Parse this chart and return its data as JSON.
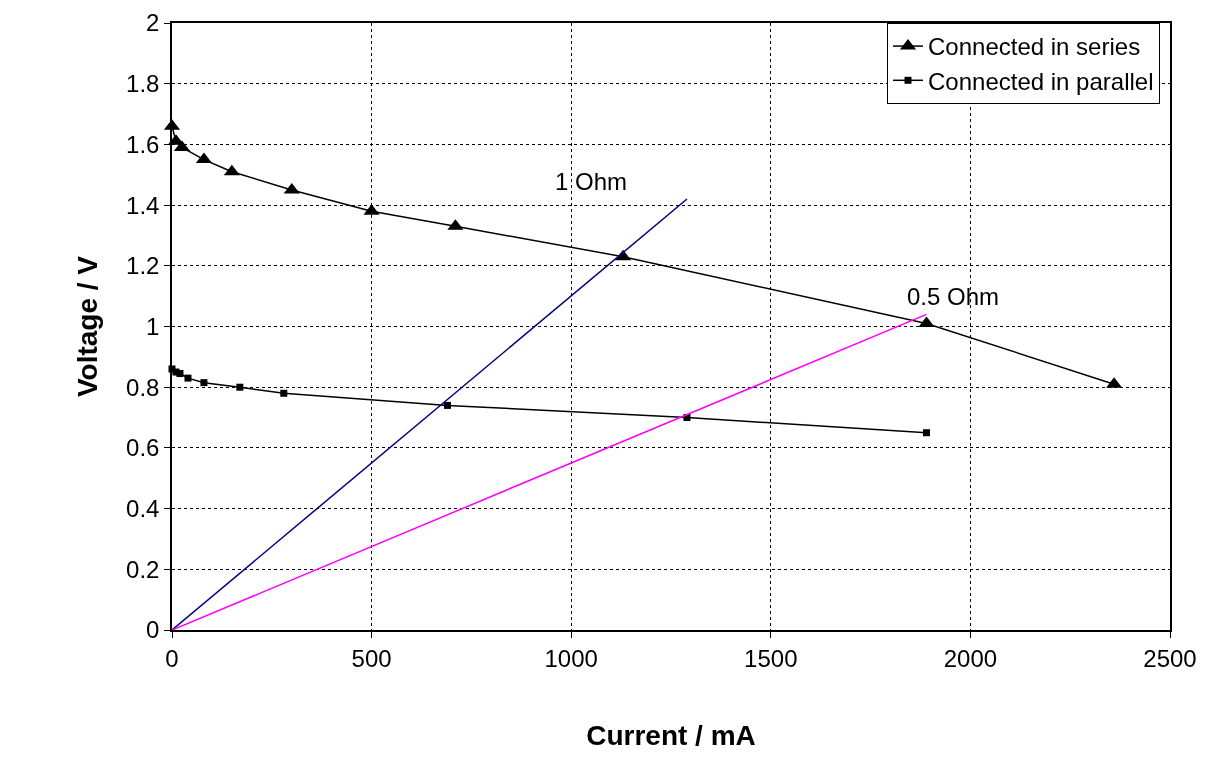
{
  "chart_data": {
    "type": "line",
    "xlabel": "Current / mA",
    "ylabel": "Voltage / V",
    "xlim": [
      0,
      2500
    ],
    "xticks": [
      0,
      500,
      1000,
      1500,
      2000,
      2500
    ],
    "ylim": [
      0,
      2
    ],
    "yticks": [
      0,
      0.2,
      0.4,
      0.6,
      0.8,
      1,
      1.2,
      1.4,
      1.6,
      1.8,
      2
    ],
    "grid": true,
    "legend": "top right",
    "series": [
      {
        "name": "Connected in series",
        "color": "#000000",
        "marker": "triangle",
        "x": [
          0,
          10,
          25,
          80,
          150,
          300,
          500,
          710,
          1130,
          1890,
          2360
        ],
        "values": [
          1.66,
          1.61,
          1.59,
          1.55,
          1.51,
          1.45,
          1.38,
          1.33,
          1.23,
          1.01,
          0.81
        ]
      },
      {
        "name": "Connected in parallel",
        "color": "#000000",
        "marker": "square",
        "x": [
          0,
          10,
          20,
          40,
          80,
          170,
          280,
          690,
          1290,
          1890
        ],
        "values": [
          0.86,
          0.85,
          0.845,
          0.83,
          0.815,
          0.8,
          0.78,
          0.74,
          0.7,
          0.65
        ]
      },
      {
        "color": "#000080",
        "marker": "none",
        "x": [
          0,
          1290
        ],
        "values": [
          0,
          1.42
        ]
      },
      {
        "color": "#ff00ff",
        "marker": "none",
        "x": [
          0,
          1890
        ],
        "values": [
          0,
          1.04
        ]
      }
    ],
    "annotations": [
      {
        "text": "1 Ohm",
        "x": 1290,
        "y": 1.42
      },
      {
        "text": "0.5 Ohm",
        "x": 1890,
        "y": 1.04
      }
    ]
  }
}
